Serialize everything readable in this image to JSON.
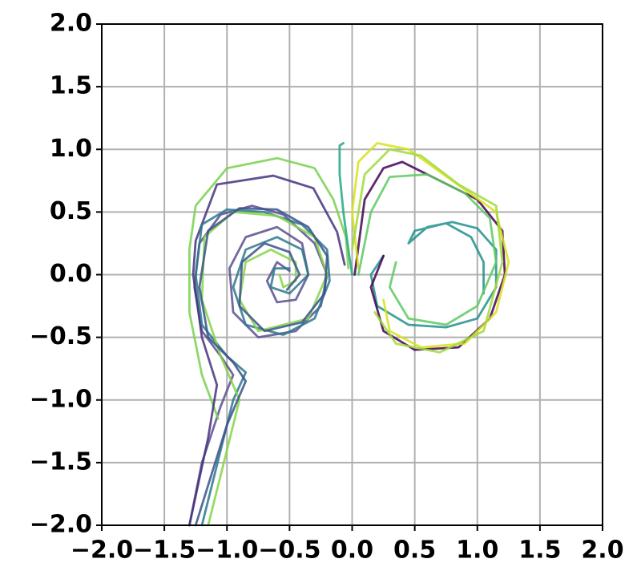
{
  "chart_data": {
    "type": "line",
    "grid": true,
    "xlim": [
      -2,
      2
    ],
    "ylim": [
      -2,
      2
    ],
    "xticks": [
      {
        "value": -2,
        "label": "−2.0"
      },
      {
        "value": -1.5,
        "label": "−1.5"
      },
      {
        "value": -1,
        "label": "−1.0"
      },
      {
        "value": -0.5,
        "label": "−0.5"
      },
      {
        "value": 0,
        "label": "0.0"
      },
      0.5,
      {
        "value": 1,
        "label": "1.0"
      },
      1.5,
      {
        "value": 2,
        "label": "2.0"
      }
    ],
    "yticks": [
      {
        "value": -2,
        "label": "−2.0"
      },
      {
        "value": -1.5,
        "label": "−1.5"
      },
      {
        "value": -1,
        "label": "−1.0"
      },
      {
        "value": -0.5,
        "label": "−0.5"
      },
      {
        "value": 0,
        "label": "0.0"
      },
      0.5,
      {
        "value": 1,
        "label": "1.0"
      },
      1.5,
      {
        "value": 2,
        "label": "2.0"
      }
    ],
    "series": [
      {
        "color": "#5b4f8f",
        "x": [
          -1.3,
          -1.2,
          -1.05,
          -0.95,
          -1.05,
          -1.2,
          -1.26,
          -1.22,
          -1.05,
          -0.8,
          -0.55,
          -0.3,
          -0.2,
          -0.25,
          -0.45,
          -0.75,
          -0.95,
          -0.98,
          -0.85,
          -0.6,
          -0.4,
          -0.35,
          -0.45,
          -0.6,
          -0.68,
          -0.6,
          -0.5
        ],
        "values": [
          -2.0,
          -1.5,
          -1.05,
          -0.8,
          -0.65,
          -0.45,
          -0.1,
          0.25,
          0.48,
          0.55,
          0.48,
          0.25,
          0.0,
          -0.25,
          -0.45,
          -0.5,
          -0.3,
          0.05,
          0.3,
          0.38,
          0.25,
          0.0,
          -0.2,
          -0.22,
          -0.05,
          0.1,
          0.03
        ]
      },
      {
        "color": "#7ad151",
        "x": [
          -1.07,
          -1.2,
          -1.3,
          -1.3,
          -1.25,
          -1.0,
          -0.6,
          -0.3,
          -0.15,
          -0.05,
          -0.03
        ],
        "values": [
          -1.15,
          -0.8,
          -0.3,
          0.2,
          0.55,
          0.85,
          0.93,
          0.85,
          0.6,
          0.3,
          0.05
        ]
      },
      {
        "color": "#46337e",
        "x": [
          -1.3,
          -1.15,
          -1.08,
          -1.2,
          -1.27,
          -1.25,
          -1.08,
          -0.63,
          -0.31,
          -0.12,
          -0.06
        ],
        "values": [
          -2.0,
          -1.3,
          -0.88,
          -0.5,
          0.0,
          0.27,
          0.72,
          0.79,
          0.69,
          0.34,
          0.08
        ]
      },
      {
        "color": "#2a788e",
        "x": [
          -1.2,
          -0.95,
          -0.85,
          -1.0,
          -1.2,
          -1.25,
          -1.2,
          -1.0,
          -0.7,
          -0.4,
          -0.2,
          -0.18,
          -0.3,
          -0.55,
          -0.85,
          -0.95,
          -0.85,
          -0.6,
          -0.4,
          -0.35,
          -0.5,
          -0.65,
          -0.62,
          -0.5
        ],
        "values": [
          -2.0,
          -1.0,
          -0.78,
          -0.65,
          -0.4,
          0.0,
          0.4,
          0.52,
          0.5,
          0.4,
          0.2,
          -0.05,
          -0.35,
          -0.48,
          -0.4,
          -0.1,
          0.2,
          0.3,
          0.2,
          0.0,
          -0.15,
          -0.1,
          0.05,
          0.05
        ]
      },
      {
        "color": "#86d549",
        "x": [
          -1.15,
          -0.9,
          -1.05,
          -1.2,
          -1.18,
          -0.95,
          -0.6,
          -0.3,
          -0.2,
          -0.35,
          -0.75,
          -0.9,
          -0.85,
          -0.65,
          -0.45,
          -0.45,
          -0.55,
          -0.58
        ],
        "values": [
          -2.0,
          -1.0,
          -0.65,
          -0.2,
          0.3,
          0.5,
          0.47,
          0.3,
          0.0,
          -0.35,
          -0.45,
          -0.2,
          0.1,
          0.2,
          0.1,
          -0.05,
          -0.1,
          0.0
        ]
      },
      {
        "color": "#3b528b",
        "x": [
          -1.25,
          -1.0,
          -0.85,
          -0.95,
          -1.15,
          -1.22,
          -1.15,
          -0.9,
          -0.6,
          -0.35,
          -0.2,
          -0.22,
          -0.4,
          -0.7,
          -0.9,
          -0.88,
          -0.7,
          -0.5,
          -0.42,
          -0.52
        ],
        "values": [
          -2.0,
          -1.2,
          -0.85,
          -0.7,
          -0.5,
          -0.1,
          0.35,
          0.53,
          0.52,
          0.38,
          0.15,
          -0.15,
          -0.38,
          -0.45,
          -0.25,
          0.1,
          0.25,
          0.18,
          0.0,
          -0.12
        ]
      },
      {
        "color": "#22a884",
        "x": [
          -0.07,
          -0.1,
          -0.1,
          -0.07,
          -0.03,
          0.0
        ],
        "values": [
          1.05,
          1.03,
          0.8,
          0.5,
          0.2,
          0.0
        ]
      },
      {
        "color": "#21918c",
        "x": [
          0.25,
          0.15,
          0.2,
          0.45,
          0.75,
          1.0,
          1.15,
          1.15,
          1.0,
          0.8,
          0.6,
          0.45,
          0.5,
          0.75,
          0.95,
          1.05,
          1.05
        ],
        "values": [
          0.15,
          0.0,
          -0.25,
          -0.4,
          -0.42,
          -0.35,
          -0.1,
          0.2,
          0.37,
          0.42,
          0.38,
          0.25,
          0.35,
          0.41,
          0.3,
          0.1,
          -0.15
        ]
      },
      {
        "color": "#440154",
        "x": [
          0.02,
          0.1,
          0.25,
          0.4,
          0.7,
          1.0,
          1.2,
          1.22,
          1.1,
          0.85,
          0.5,
          0.25,
          0.15,
          0.25
        ],
        "values": [
          0.0,
          0.6,
          0.85,
          0.9,
          0.75,
          0.6,
          0.35,
          0.0,
          -0.35,
          -0.58,
          -0.6,
          -0.45,
          -0.1,
          0.15
        ]
      },
      {
        "color": "#d8e219",
        "x": [
          0.05,
          0.0,
          0.05,
          0.2,
          0.45,
          0.8,
          1.15,
          1.25,
          1.15,
          0.9,
          0.55,
          0.3,
          0.25
        ],
        "values": [
          0.05,
          0.5,
          0.9,
          1.05,
          1.0,
          0.75,
          0.5,
          0.1,
          -0.3,
          -0.55,
          -0.58,
          -0.45,
          -0.2
        ]
      },
      {
        "color": "#a0da39",
        "x": [
          0.0,
          0.1,
          0.3,
          0.55,
          0.85,
          1.15,
          1.2,
          1.05,
          0.7,
          0.35,
          0.18
        ],
        "values": [
          0.2,
          0.8,
          1.0,
          0.95,
          0.72,
          0.55,
          0.1,
          -0.45,
          -0.62,
          -0.55,
          -0.3
        ]
      },
      {
        "color": "#5ec962",
        "x": [
          0.05,
          0.15,
          0.3,
          0.6,
          0.9,
          1.1,
          1.15,
          1.0,
          0.75,
          0.45,
          0.3,
          0.35
        ],
        "values": [
          0.0,
          0.5,
          0.78,
          0.8,
          0.65,
          0.45,
          0.1,
          -0.25,
          -0.4,
          -0.35,
          -0.1,
          0.1
        ]
      }
    ]
  }
}
